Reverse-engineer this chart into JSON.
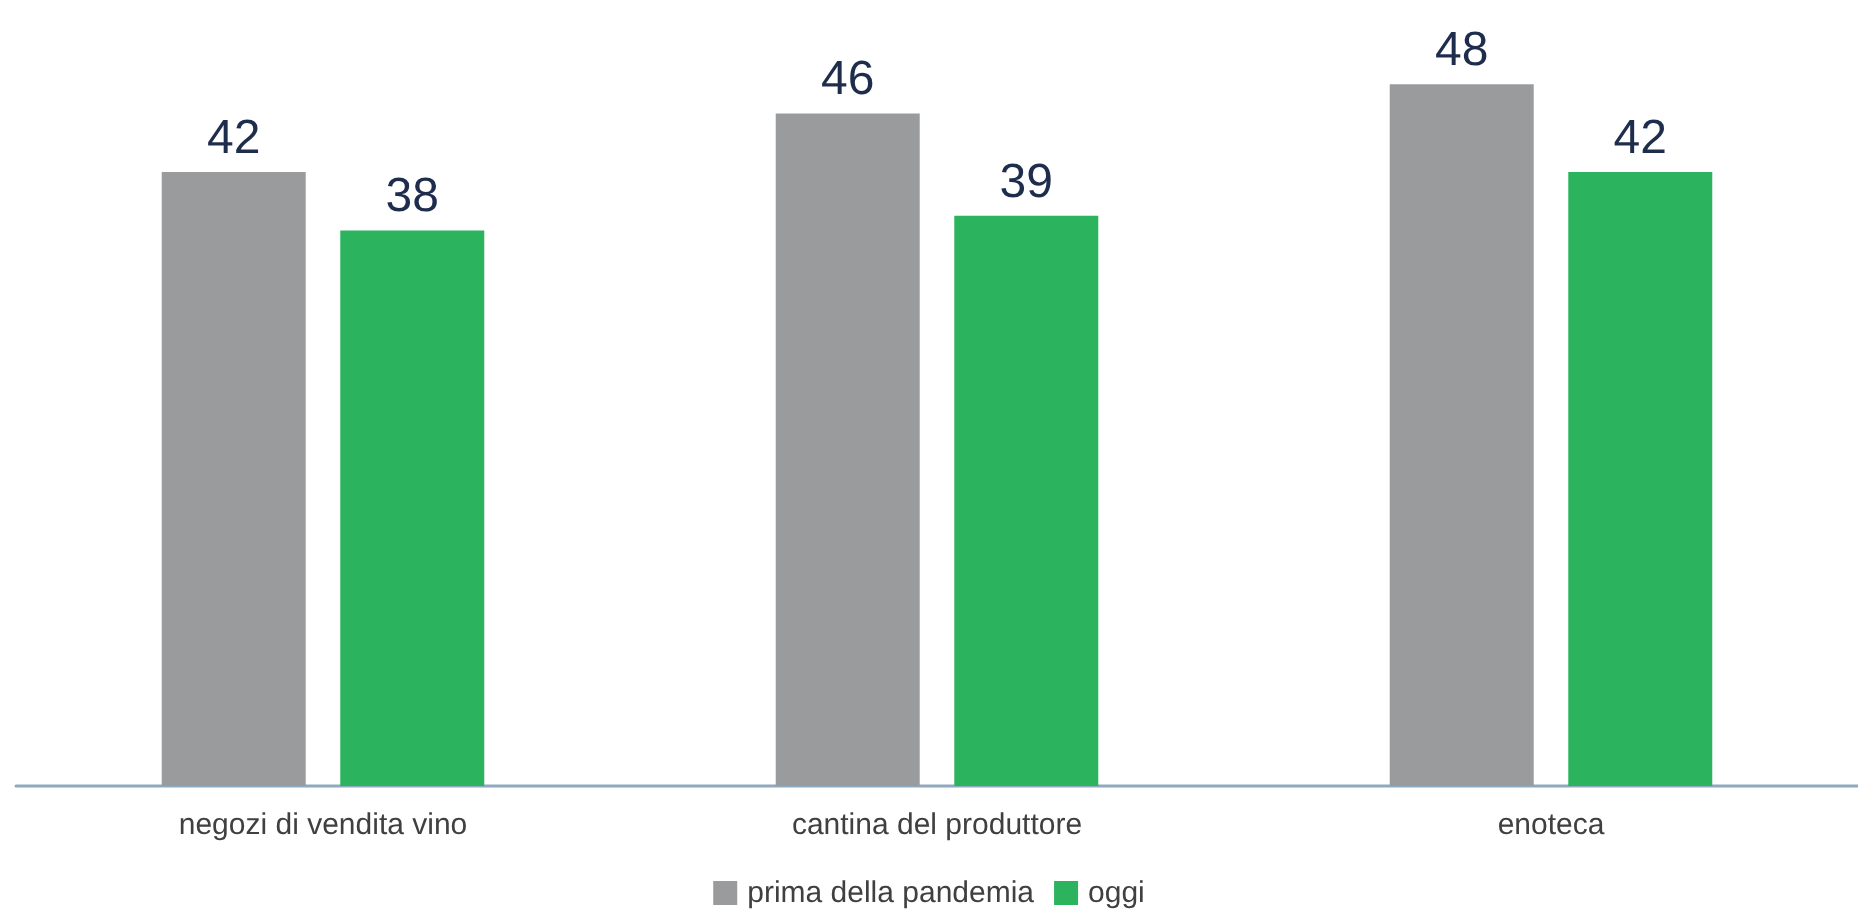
{
  "chart_data": {
    "type": "bar",
    "categories": [
      "negozi di vendita vino",
      "cantina del produttore",
      "enoteca"
    ],
    "series": [
      {
        "name": "prima della pandemia",
        "color": "#999b9c",
        "values": [
          42,
          46,
          48
        ]
      },
      {
        "name": "oggi",
        "color": "#2bb45d",
        "values": [
          38,
          39,
          42
        ]
      }
    ],
    "data_labels": true,
    "legend": "bottom"
  }
}
